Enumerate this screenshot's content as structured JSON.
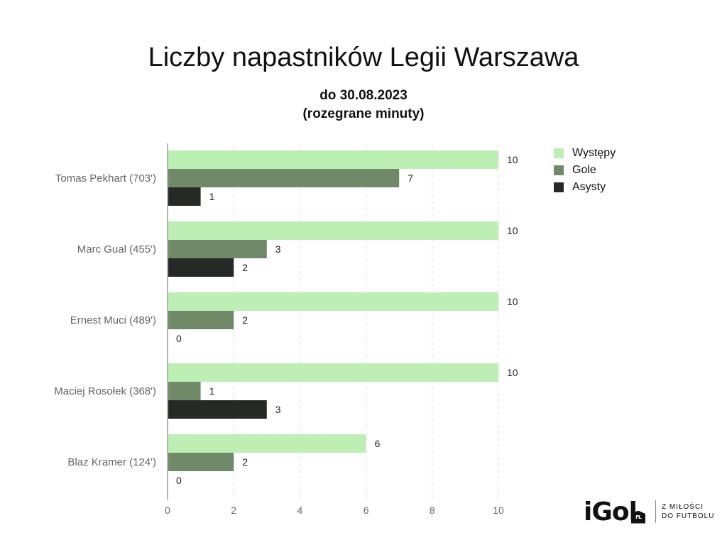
{
  "chart_data": {
    "type": "bar",
    "orientation": "horizontal",
    "title": "Liczby napastników Legii Warszawa",
    "subtitle": [
      "do 30.08.2023",
      "(rozegrane minuty)"
    ],
    "categories": [
      "Tomas Pekhart (703')",
      "Marc Gual (455')",
      "Ernest Muci (489')",
      "Maciej Rosołek (368')",
      "Blaz Kramer (124')"
    ],
    "series": [
      {
        "name": "Występy",
        "color": "#bdeeb4",
        "values": [
          10,
          10,
          10,
          10,
          6
        ]
      },
      {
        "name": "Gole",
        "color": "#708a69",
        "values": [
          7,
          3,
          2,
          1,
          2
        ]
      },
      {
        "name": "Asysty",
        "color": "#262a26",
        "values": [
          1,
          2,
          0,
          3,
          0
        ]
      }
    ],
    "xlim": [
      0,
      10
    ],
    "xticks": [
      "0",
      "2",
      "4",
      "6",
      "8",
      "10"
    ],
    "grid": true,
    "legend_position": "right",
    "data_labels": true
  },
  "branding": {
    "logo_text": "iGol",
    "logo_badge": "PL",
    "tagline": [
      "Z MIŁOŚCI",
      "DO FUTBOLU"
    ]
  }
}
